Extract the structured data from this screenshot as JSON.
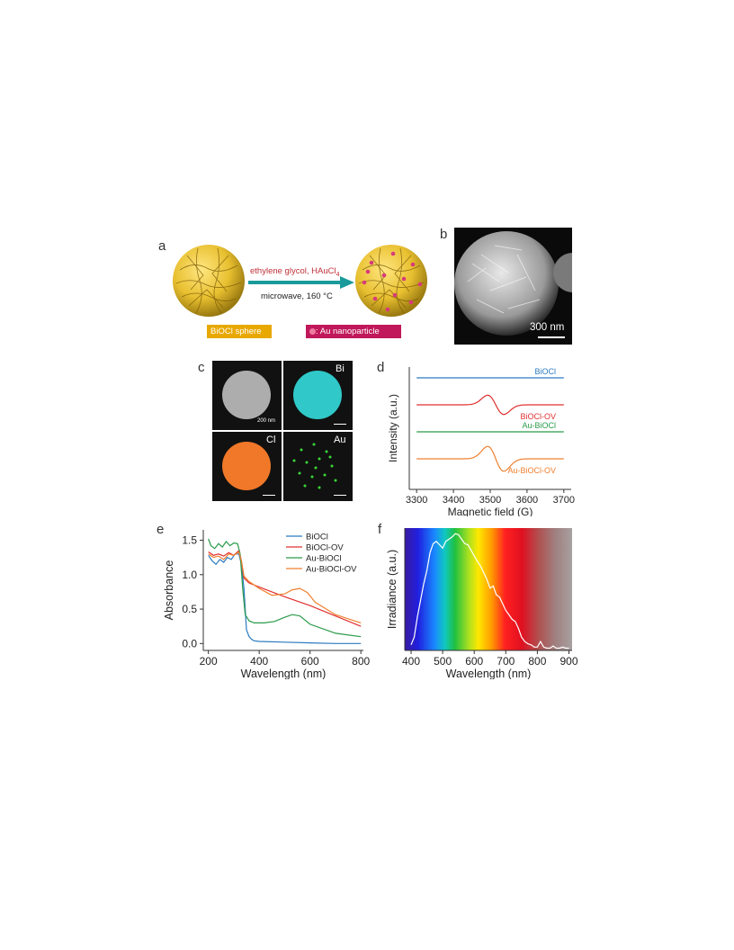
{
  "panels": {
    "a": "a",
    "b": "b",
    "c": "c",
    "d": "d",
    "e": "e",
    "f": "f"
  },
  "panel_a": {
    "reaction_top": "ethylene glycol, HAuCl",
    "reaction_top_sub": "4",
    "reaction_bottom": "microwave, 160 °C",
    "legend_sphere": "BiOCl sphere",
    "legend_au": ": Au nanoparticle",
    "colors": {
      "sphere": "#e8c030",
      "sphere_tag": "#e8a800",
      "au_tag": "#c0185a",
      "arrow": "#1a9a9a"
    }
  },
  "panel_b": {
    "scalebar": "300 nm"
  },
  "panel_c": {
    "tiles": [
      {
        "label": "",
        "scalebar": "200 nm",
        "color": "#bfbfbf"
      },
      {
        "label": "Bi",
        "scalebar": "",
        "color": "#30c8c8"
      },
      {
        "label": "Cl",
        "scalebar": "",
        "color": "#f07828"
      },
      {
        "label": "Au",
        "scalebar": "",
        "color": "#38d838"
      }
    ]
  },
  "chart_data": [
    {
      "id": "d",
      "type": "line",
      "xlabel": "Magnetic field (G)",
      "ylabel": "Intensity (a.u.)",
      "xlim": [
        3280,
        3720
      ],
      "xticks": [
        3300,
        3400,
        3500,
        3600,
        3700
      ],
      "series": [
        {
          "name": "BiOCl",
          "color": "#2a7ac0",
          "offset": 0,
          "amp": 0
        },
        {
          "name": "BiOCl-OV",
          "color": "#e03030",
          "offset": 1,
          "amp": 1
        },
        {
          "name": "Au-BiOCl",
          "color": "#2a9a4a",
          "offset": 2,
          "amp": 0
        },
        {
          "name": "Au-BiOCl-OV",
          "color": "#f08030",
          "offset": 3,
          "amp": 1.3
        }
      ],
      "center": 3515,
      "width": 22
    },
    {
      "id": "e",
      "type": "line",
      "xlabel": "Wavelength (nm)",
      "ylabel": "Absorbance",
      "xlim": [
        180,
        810
      ],
      "ylim": [
        -0.1,
        1.65
      ],
      "xticks": [
        200,
        400,
        600,
        800
      ],
      "yticks": [
        0.0,
        0.5,
        1.0,
        1.5
      ],
      "ytick_labels": [
        "0.0",
        "0.5",
        "1.0",
        "1.5"
      ],
      "legend_position": "top-right",
      "series": [
        {
          "name": "BiOCl",
          "color": "#2a7ac0",
          "x": [
            200,
            215,
            230,
            245,
            260,
            275,
            290,
            305,
            320,
            330,
            340,
            350,
            360,
            370,
            380,
            400,
            500,
            600,
            700,
            800
          ],
          "y": [
            1.28,
            1.2,
            1.15,
            1.22,
            1.18,
            1.25,
            1.22,
            1.3,
            1.3,
            1.15,
            0.8,
            0.2,
            0.1,
            0.06,
            0.04,
            0.03,
            0.02,
            0.01,
            0.0,
            0.0
          ]
        },
        {
          "name": "BiOCl-OV",
          "color": "#e03030",
          "x": [
            200,
            220,
            240,
            260,
            280,
            300,
            320,
            330,
            340,
            360,
            400,
            450,
            500,
            600,
            700,
            800
          ],
          "y": [
            1.33,
            1.28,
            1.3,
            1.27,
            1.32,
            1.28,
            1.35,
            1.2,
            0.95,
            0.88,
            0.82,
            0.75,
            0.68,
            0.55,
            0.4,
            0.25
          ]
        },
        {
          "name": "Au-BiOCl",
          "color": "#2a9a4a",
          "x": [
            200,
            210,
            225,
            240,
            255,
            270,
            285,
            300,
            315,
            325,
            335,
            345,
            360,
            380,
            420,
            460,
            500,
            530,
            560,
            600,
            700,
            800
          ],
          "y": [
            1.52,
            1.42,
            1.38,
            1.45,
            1.4,
            1.48,
            1.42,
            1.46,
            1.45,
            1.3,
            0.8,
            0.42,
            0.33,
            0.3,
            0.3,
            0.32,
            0.38,
            0.42,
            0.4,
            0.28,
            0.15,
            0.1
          ]
        },
        {
          "name": "Au-BiOCl-OV",
          "color": "#f08030",
          "x": [
            200,
            220,
            240,
            260,
            280,
            300,
            320,
            330,
            340,
            360,
            400,
            450,
            500,
            530,
            560,
            590,
            620,
            700,
            800
          ],
          "y": [
            1.3,
            1.25,
            1.27,
            1.22,
            1.3,
            1.28,
            1.33,
            1.2,
            0.98,
            0.9,
            0.8,
            0.7,
            0.72,
            0.78,
            0.8,
            0.74,
            0.6,
            0.42,
            0.3
          ]
        }
      ]
    },
    {
      "id": "f",
      "type": "line",
      "xlabel": "Wavelength (nm)",
      "ylabel": "Irradiance (a.u.)",
      "xlim": [
        380,
        910
      ],
      "ylim": [
        0,
        1.1
      ],
      "xticks": [
        400,
        500,
        600,
        700,
        800,
        900
      ],
      "background": "visible-spectrum",
      "series": [
        {
          "name": "",
          "color": "#ffffff",
          "x": [
            400,
            410,
            420,
            430,
            440,
            450,
            460,
            470,
            480,
            490,
            500,
            510,
            520,
            530,
            540,
            550,
            560,
            570,
            580,
            590,
            600,
            610,
            620,
            630,
            640,
            650,
            660,
            670,
            680,
            690,
            700,
            710,
            720,
            730,
            740,
            750,
            760,
            770,
            780,
            790,
            800,
            810,
            820,
            830,
            840,
            850,
            860,
            870,
            880,
            890,
            900
          ],
          "y": [
            0.05,
            0.12,
            0.3,
            0.45,
            0.6,
            0.72,
            0.88,
            0.96,
            0.98,
            0.95,
            0.92,
            0.98,
            1.0,
            1.02,
            1.05,
            1.04,
            1.0,
            0.96,
            0.95,
            0.9,
            0.85,
            0.8,
            0.76,
            0.7,
            0.64,
            0.56,
            0.58,
            0.5,
            0.48,
            0.42,
            0.36,
            0.32,
            0.28,
            0.26,
            0.2,
            0.12,
            0.08,
            0.06,
            0.05,
            0.03,
            0.03,
            0.08,
            0.03,
            0.02,
            0.02,
            0.04,
            0.02,
            0.02,
            0.03,
            0.02,
            0.02
          ]
        }
      ]
    }
  ]
}
